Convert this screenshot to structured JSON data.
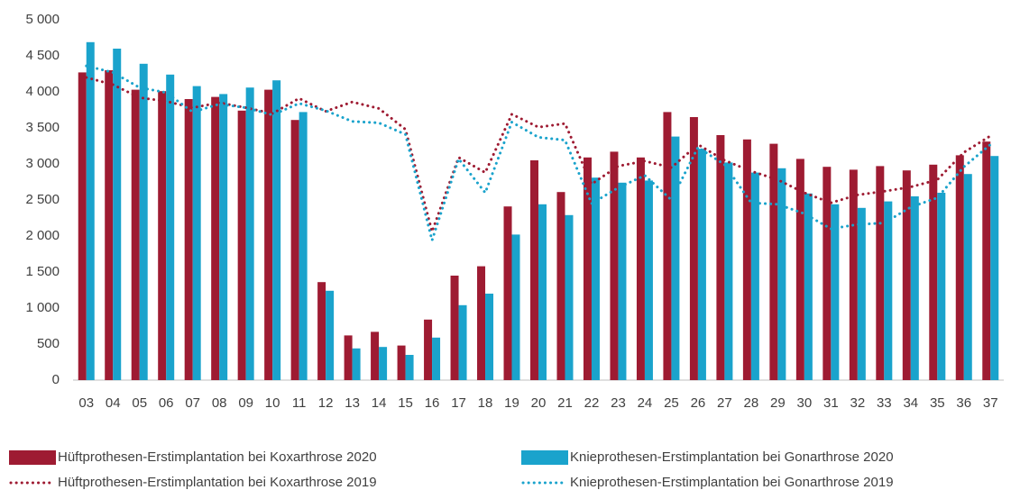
{
  "chart_data": {
    "type": "bar",
    "categories": [
      "03",
      "04",
      "05",
      "06",
      "07",
      "08",
      "09",
      "10",
      "11",
      "12",
      "13",
      "14",
      "15",
      "16",
      "17",
      "18",
      "19",
      "20",
      "21",
      "22",
      "23",
      "24",
      "25",
      "26",
      "27",
      "28",
      "29",
      "30",
      "31",
      "32",
      "33",
      "34",
      "35",
      "36",
      "37"
    ],
    "series": [
      {
        "name": "Hüftprothesen-Erstimplantation bei Koxarthrose 2020",
        "color": "#9e1b32",
        "type": "bar",
        "values": [
          4270,
          4300,
          4030,
          4010,
          3900,
          3930,
          3740,
          4030,
          3610,
          1360,
          620,
          670,
          480,
          840,
          1450,
          1580,
          2410,
          3050,
          2610,
          3090,
          3170,
          3090,
          3720,
          3650,
          3400,
          3340,
          3280,
          3070,
          2960,
          2920,
          2970,
          2910,
          2990,
          3120,
          3310
        ]
      },
      {
        "name": "Knieprothesen-Erstimplantation bei Gonarthrose 2020",
        "color": "#1aa3cc",
        "type": "bar",
        "values": [
          4690,
          4600,
          4390,
          4240,
          4080,
          3970,
          4060,
          4160,
          3720,
          1240,
          440,
          460,
          350,
          590,
          1040,
          1200,
          2020,
          2440,
          2290,
          2810,
          2740,
          2770,
          3380,
          3210,
          3020,
          2880,
          2940,
          2590,
          2440,
          2390,
          2480,
          2550,
          2600,
          2860,
          3110
        ]
      },
      {
        "name": "Hüftprothesen-Erstimplantation bei Koxarthrose 2019",
        "color": "#9e1b32",
        "type": "line",
        "dash": "dotted",
        "values": [
          4200,
          4100,
          3920,
          3870,
          3780,
          3850,
          3780,
          3700,
          3910,
          3730,
          3860,
          3770,
          3480,
          2060,
          3090,
          2880,
          3690,
          3510,
          3560,
          2720,
          2970,
          3040,
          2950,
          3270,
          3050,
          2900,
          2780,
          2600,
          2460,
          2570,
          2620,
          2680,
          2780,
          3160,
          3390
        ]
      },
      {
        "name": "Knieprothesen-Erstimplantation bei Gonarthrose 2019",
        "color": "#1aa3cc",
        "type": "line",
        "dash": "dotted",
        "values": [
          4360,
          4270,
          4060,
          3990,
          3720,
          3830,
          3780,
          3680,
          3840,
          3740,
          3590,
          3570,
          3410,
          1940,
          3070,
          2600,
          3580,
          3370,
          3330,
          2450,
          2670,
          2840,
          2500,
          3230,
          2990,
          2460,
          2440,
          2310,
          2100,
          2160,
          2180,
          2400,
          2530,
          2960,
          3270
        ]
      }
    ],
    "ylim": [
      0,
      5000
    ],
    "yticks": [
      0,
      500,
      {
        "value": 1000,
        "label": "1 000"
      },
      {
        "value": 1500,
        "label": "1 500"
      },
      {
        "value": 2000,
        "label": "2 000"
      },
      {
        "value": 2500,
        "label": "2 500"
      },
      {
        "value": 3000,
        "label": "3 000"
      },
      {
        "value": 3500,
        "label": "3 500"
      },
      {
        "value": 4000,
        "label": "4 000"
      },
      {
        "value": 4500,
        "label": "4 500"
      },
      {
        "value": 5000,
        "label": "5 000"
      }
    ],
    "grid": false,
    "legend": "bottom"
  }
}
